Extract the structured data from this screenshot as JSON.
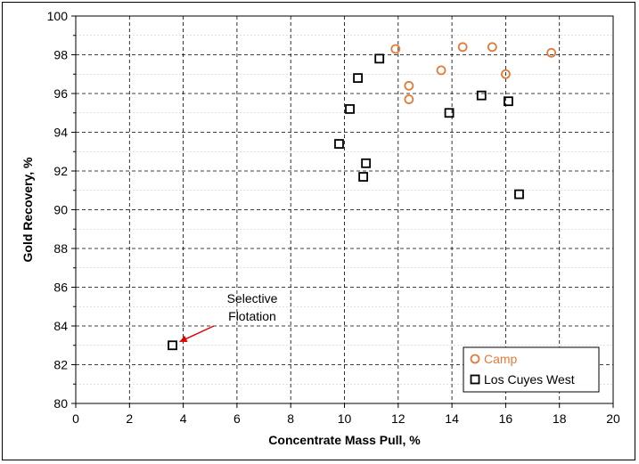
{
  "chart_data": {
    "type": "scatter",
    "xlabel": "Concentrate Mass Pull, %",
    "ylabel": "Gold Recovery, %",
    "xlim": [
      0,
      20
    ],
    "ylim": [
      80,
      100
    ],
    "x_ticks": [
      "0",
      "2",
      "4",
      "6",
      "8",
      "10",
      "12",
      "14",
      "16",
      "18",
      "20"
    ],
    "y_ticks": [
      "80",
      "82",
      "84",
      "86",
      "88",
      "90",
      "92",
      "94",
      "96",
      "98",
      "100"
    ],
    "grid": true,
    "legend_position": "bottom-right",
    "series": [
      {
        "name": "Camp",
        "marker": "circle",
        "color": "#E07B39",
        "points": [
          [
            11.9,
            98.3
          ],
          [
            12.4,
            96.4
          ],
          [
            12.4,
            95.7
          ],
          [
            13.6,
            97.2
          ],
          [
            14.4,
            98.4
          ],
          [
            15.5,
            98.4
          ],
          [
            16.0,
            97.0
          ],
          [
            17.7,
            98.1
          ]
        ]
      },
      {
        "name": "Los Cuyes West",
        "marker": "square",
        "color": "#000000",
        "points": [
          [
            3.6,
            83.0
          ],
          [
            9.8,
            93.4
          ],
          [
            10.2,
            95.2
          ],
          [
            10.5,
            96.8
          ],
          [
            10.7,
            91.7
          ],
          [
            10.8,
            92.4
          ],
          [
            11.3,
            97.8
          ],
          [
            13.9,
            95.0
          ],
          [
            15.1,
            95.9
          ],
          [
            16.1,
            95.6
          ],
          [
            16.5,
            90.8
          ]
        ]
      }
    ],
    "annotation": {
      "line1": "Selective",
      "line2": "Flotation",
      "color": "#E00000",
      "target": [
        3.6,
        83.0
      ]
    }
  }
}
